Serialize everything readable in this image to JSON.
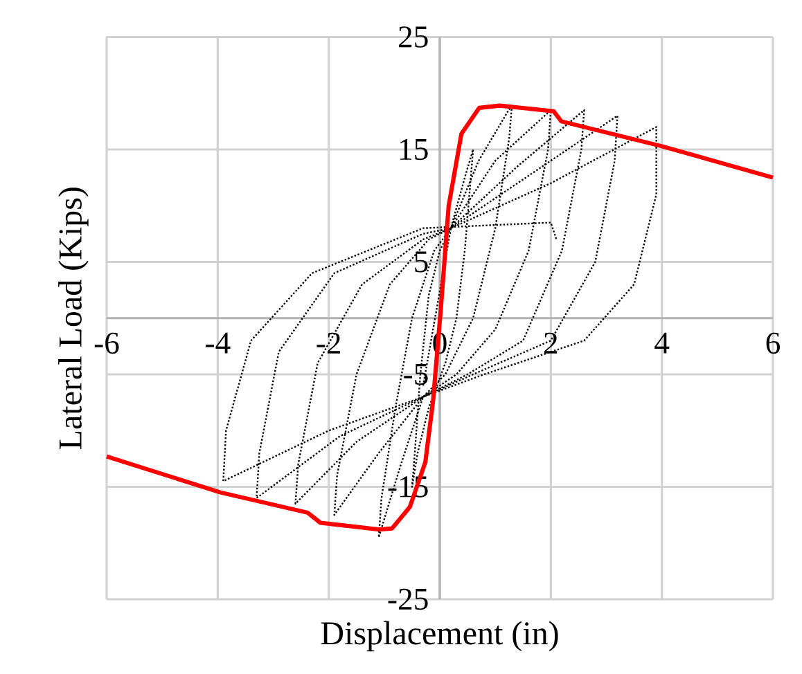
{
  "chart_data": {
    "type": "line",
    "xlabel": "Displacement (in)",
    "ylabel": "Lateral Load (Kips)",
    "xlim": [
      -6,
      6
    ],
    "ylim": [
      -25,
      25
    ],
    "xticks": [
      -6,
      -4,
      -2,
      0,
      2,
      4,
      6
    ],
    "yticks": [
      -25,
      -15,
      -5,
      5,
      15,
      25
    ],
    "grid": true,
    "marker": "none",
    "series": [
      {
        "color": "#000000",
        "line_style": "dotted",
        "x": [
          -0.3,
          0.2,
          0.45,
          0.6,
          0.55,
          0.45,
          0.3,
          0.1,
          -0.2,
          -0.4,
          -0.5,
          -0.45,
          -0.35,
          -0.2,
          0,
          0.2,
          0.7,
          1.3,
          1.25,
          1.0,
          0.6,
          0.1,
          -0.3,
          -0.7,
          -1.1,
          -1.05,
          -0.8,
          -0.5,
          -0.1,
          0.2,
          1.0,
          2.0,
          1.95,
          1.6,
          1.0,
          0.3,
          -0.3,
          -1.1,
          -1.9,
          -1.85,
          -1.5,
          -0.9,
          -0.2,
          0.2,
          1.4,
          2.6,
          2.55,
          2.2,
          1.5,
          0.5,
          -0.3,
          -1.5,
          -2.6,
          -2.55,
          -2.2,
          -1.4,
          -0.3,
          0.2,
          1.7,
          3.2,
          3.15,
          2.8,
          2.0,
          0.6,
          -0.3,
          -1.8,
          -3.3,
          -3.25,
          -2.9,
          -1.9,
          -0.3,
          0.2,
          2.0,
          3.9,
          3.9,
          3.5,
          2.6,
          0.8,
          -0.3,
          -2.0,
          -3.9,
          -3.85,
          -3.4,
          -2.3,
          -0.3,
          2.0,
          2.1
        ],
        "values": [
          -6,
          8,
          12.5,
          15,
          12,
          6,
          0,
          -4,
          -8,
          -12,
          -15,
          -12,
          -5,
          2,
          6,
          8,
          14,
          19,
          16,
          8,
          0,
          -5,
          -7,
          -13,
          -19.5,
          -16,
          -8,
          0,
          6,
          8,
          14,
          18.5,
          15,
          6,
          -1,
          -5,
          -7,
          -12,
          -17.5,
          -14,
          -5,
          3,
          7,
          8,
          13.5,
          18.5,
          15,
          6,
          -2,
          -5,
          -7,
          -11,
          -16.5,
          -13,
          -4,
          3,
          7,
          8,
          13,
          18,
          14,
          5,
          -2,
          -5,
          -7,
          -10.5,
          -16,
          -12,
          -3,
          4,
          7.5,
          8,
          12,
          17,
          11,
          3,
          -2,
          -5,
          -7,
          -10,
          -14.5,
          -10,
          -2,
          4,
          8,
          8.5,
          7
        ]
      },
      {
        "color": "#ff0000",
        "line_style": "solid",
        "x": [
          -6,
          -3.95,
          -2.38,
          -2.15,
          -1.09,
          -0.86,
          -0.54,
          -0.26,
          -0.12,
          0.02,
          0.16,
          0.39,
          0.71,
          1.08,
          2.05,
          2.19,
          3.99,
          6
        ],
        "values": [
          -12.3,
          -15.5,
          -17.3,
          -18.2,
          -18.8,
          -18.7,
          -16.8,
          -12.8,
          -7.3,
          0.9,
          10,
          16.4,
          18.7,
          18.9,
          18.4,
          17.5,
          15.3,
          12.5
        ]
      }
    ]
  }
}
